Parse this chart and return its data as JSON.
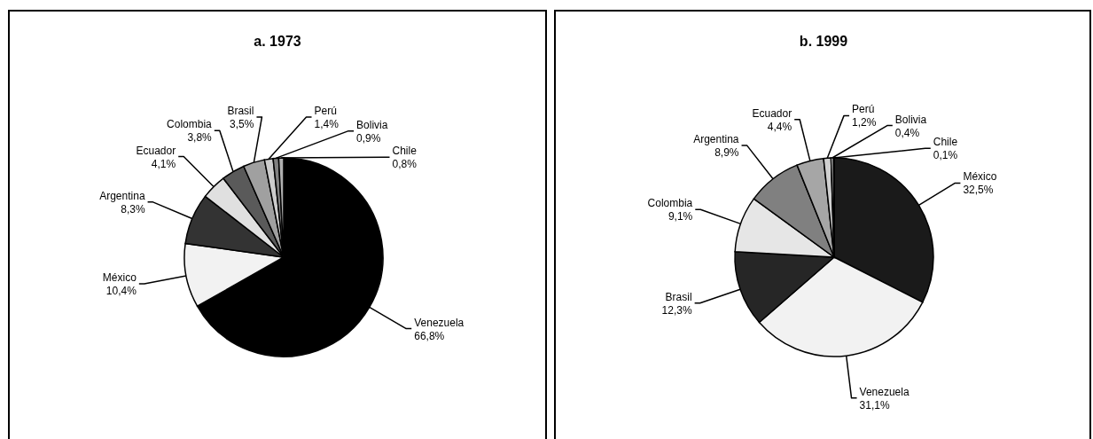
{
  "chart_data": [
    {
      "type": "pie",
      "title": "a. 1973",
      "categories": [
        "Venezuela",
        "México",
        "Argentina",
        "Ecuador",
        "Colombia",
        "Brasil",
        "Perú",
        "Bolivia",
        "Chile"
      ],
      "values": [
        66.8,
        10.4,
        8.3,
        4.1,
        3.8,
        3.5,
        1.4,
        0.9,
        0.8
      ],
      "value_labels": [
        "66,8%",
        "10,4%",
        "8,3%",
        "4,1%",
        "3,8%",
        "3,5%",
        "1,4%",
        "0,9%",
        "0,8%"
      ],
      "colors": [
        "#000000",
        "#f2f2f2",
        "#333333",
        "#e0e0e0",
        "#5a5a5a",
        "#a0a0a0",
        "#cccccc",
        "#808080",
        "#b0b0b0"
      ]
    },
    {
      "type": "pie",
      "title": "b. 1999",
      "categories": [
        "México",
        "Venezuela",
        "Brasil",
        "Colombia",
        "Argentina",
        "Ecuador",
        "Perú",
        "Bolivia",
        "Chile"
      ],
      "values": [
        32.5,
        31.1,
        12.3,
        9.1,
        8.9,
        4.4,
        1.2,
        0.4,
        0.1
      ],
      "value_labels": [
        "32,5%",
        "31,1%",
        "12,3%",
        "9,1%",
        "8,9%",
        "4,4%",
        "1,2%",
        "0,4%",
        "0,1%"
      ],
      "colors": [
        "#1a1a1a",
        "#f2f2f2",
        "#262626",
        "#e6e6e6",
        "#808080",
        "#a6a6a6",
        "#d0d0d0",
        "#ffffff",
        "#888888"
      ]
    }
  ]
}
